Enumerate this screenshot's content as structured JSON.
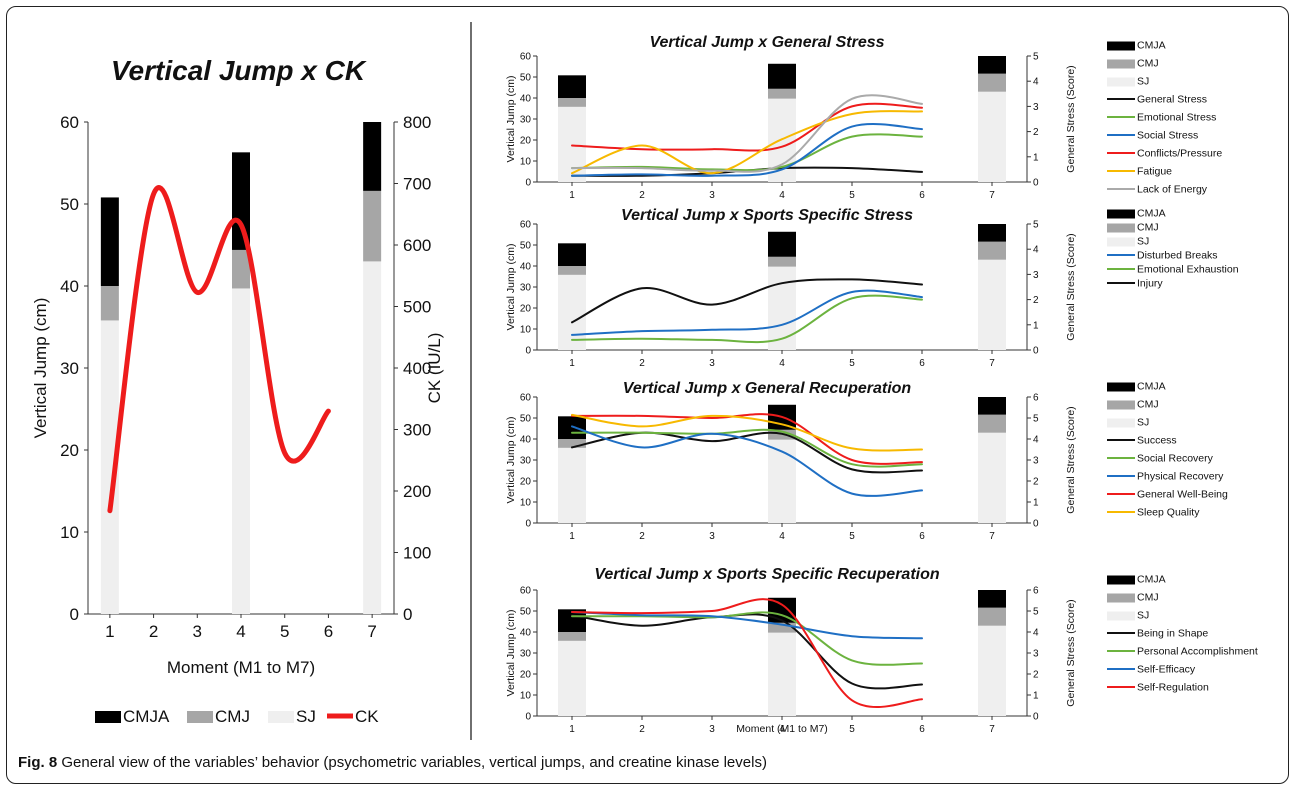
{
  "caption": {
    "label": "Fig. 8",
    "text": " General view of the variables’ behavior (psychometric variables, vertical jumps, and creatine kinase levels)"
  },
  "colors": {
    "cmja": "#000000",
    "cmj": "#a6a6a6",
    "sj": "#efefef",
    "red": "#ee1c1c",
    "green": "#6cb33f",
    "blue": "#1f6fc4",
    "yellow": "#f7b900",
    "gray": "#aaaaaa",
    "black": "#111111"
  },
  "chart_data": [
    {
      "id": "ck",
      "type": "bar+line",
      "title": "Vertical Jump x CK",
      "xlabel": "Moment (M1 to M7)",
      "ylabel": "Vertical Jump (cm)",
      "y2label": "CK (IU/L)",
      "ylim": [
        0,
        60
      ],
      "yticks": [
        0,
        10,
        20,
        30,
        40,
        50,
        60
      ],
      "y2lim": [
        0,
        800
      ],
      "y2ticks": [
        0,
        100,
        200,
        300,
        400,
        500,
        600,
        700,
        800
      ],
      "x": [
        1,
        2,
        3,
        4,
        5,
        6,
        7
      ],
      "bars": [
        {
          "x": 1,
          "sj": 35.8,
          "cmj": 40,
          "cmja": 50.8
        },
        {
          "x": 4,
          "sj": 39.7,
          "cmj": 44.4,
          "cmja": 56.3
        },
        {
          "x": 7,
          "sj": 43,
          "cmj": 51.6,
          "cmja": 60
        }
      ],
      "bar_legend": [
        "CMJA",
        "CMJ",
        "SJ"
      ],
      "series": [
        {
          "name": "CK",
          "color": "red",
          "axis": "y2",
          "x": [
            1,
            2,
            3,
            4,
            5,
            6
          ],
          "values": [
            168,
            683,
            523,
            633,
            262,
            330
          ]
        }
      ],
      "legend_position": "bottom"
    },
    {
      "id": "gs",
      "type": "bar+line",
      "title": "Vertical Jump x General Stress",
      "xlabel": "",
      "ylabel": "Vertical Jump (cm)",
      "y2label": "General Stress (Score)",
      "ylim": [
        0,
        60
      ],
      "yticks": [
        0,
        10,
        20,
        30,
        40,
        50,
        60
      ],
      "y2lim": [
        0,
        5
      ],
      "y2ticks": [
        0,
        1,
        2,
        3,
        4,
        5
      ],
      "x": [
        1,
        2,
        3,
        4,
        5,
        6,
        7
      ],
      "bars": [
        {
          "x": 1,
          "sj": 35.8,
          "cmj": 40,
          "cmja": 50.8
        },
        {
          "x": 4,
          "sj": 39.7,
          "cmj": 44.4,
          "cmja": 56.3
        },
        {
          "x": 7,
          "sj": 43,
          "cmj": 51.6,
          "cmja": 60
        }
      ],
      "bar_legend": [
        "CMJA",
        "CMJ",
        "SJ"
      ],
      "series": [
        {
          "name": "General Stress",
          "color": "black",
          "axis": "y2",
          "x": [
            1,
            2,
            3,
            4,
            5,
            6
          ],
          "values": [
            0.25,
            0.25,
            0.35,
            0.55,
            0.55,
            0.4
          ]
        },
        {
          "name": "Emotional Stress",
          "color": "green",
          "axis": "y2",
          "x": [
            1,
            2,
            3,
            4,
            5,
            6
          ],
          "values": [
            0.55,
            0.6,
            0.5,
            0.6,
            1.8,
            1.8
          ]
        },
        {
          "name": "Social Stress",
          "color": "blue",
          "axis": "y2",
          "x": [
            1,
            2,
            3,
            4,
            5,
            6
          ],
          "values": [
            0.25,
            0.3,
            0.25,
            0.5,
            2.2,
            2.1
          ]
        },
        {
          "name": "Conflicts/Pressure",
          "color": "red",
          "axis": "y2",
          "x": [
            1,
            2,
            3,
            4,
            5,
            6
          ],
          "values": [
            1.45,
            1.3,
            1.3,
            1.4,
            3.0,
            2.95
          ]
        },
        {
          "name": "Fatigue",
          "color": "yellow",
          "axis": "y2",
          "x": [
            1,
            2,
            3,
            4,
            5,
            6
          ],
          "values": [
            0.35,
            1.45,
            0.35,
            1.7,
            2.7,
            2.8
          ]
        },
        {
          "name": "Lack of Energy",
          "color": "gray",
          "axis": "y2",
          "x": [
            1,
            2,
            3,
            4,
            5,
            6
          ],
          "values": [
            0.55,
            0.55,
            0.45,
            0.7,
            3.3,
            3.1
          ]
        }
      ],
      "legend_position": "right"
    },
    {
      "id": "sss",
      "type": "bar+line",
      "title": "Vertical Jump x Sports Specific Stress",
      "xlabel": "",
      "ylabel": "Vertical Jump (cm)",
      "y2label": "General Stress (Score)",
      "ylim": [
        0,
        60
      ],
      "yticks": [
        0,
        10,
        20,
        30,
        40,
        50,
        60
      ],
      "y2lim": [
        0,
        5
      ],
      "y2ticks": [
        0,
        1,
        2,
        3,
        4,
        5
      ],
      "x": [
        1,
        2,
        3,
        4,
        5,
        6,
        7
      ],
      "bars": [
        {
          "x": 1,
          "sj": 35.8,
          "cmj": 40,
          "cmja": 50.8
        },
        {
          "x": 4,
          "sj": 39.7,
          "cmj": 44.4,
          "cmja": 56.3
        },
        {
          "x": 7,
          "sj": 43,
          "cmj": 51.6,
          "cmja": 60
        }
      ],
      "bar_legend": [
        "CMJA",
        "CMJ",
        "SJ"
      ],
      "series": [
        {
          "name": "Disturbed Breaks",
          "color": "blue",
          "axis": "y2",
          "x": [
            1,
            2,
            3,
            4,
            5,
            6
          ],
          "values": [
            0.6,
            0.75,
            0.8,
            1.0,
            2.3,
            2.1
          ]
        },
        {
          "name": "Emotional Exhaustion",
          "color": "green",
          "axis": "y2",
          "x": [
            1,
            2,
            3,
            4,
            5,
            6
          ],
          "values": [
            0.4,
            0.45,
            0.4,
            0.45,
            2.05,
            2.0
          ]
        },
        {
          "name": "Injury",
          "color": "black",
          "axis": "y2",
          "x": [
            1,
            2,
            3,
            4,
            5,
            6
          ],
          "values": [
            1.1,
            2.45,
            1.8,
            2.65,
            2.8,
            2.6
          ]
        }
      ],
      "legend_position": "right"
    },
    {
      "id": "gr",
      "type": "bar+line",
      "title": "Vertical Jump x General Recuperation",
      "xlabel": "",
      "ylabel": "Vertical Jump (cm)",
      "y2label": "General Stress (Score)",
      "ylim": [
        0,
        60
      ],
      "yticks": [
        0,
        10,
        20,
        30,
        40,
        50,
        60
      ],
      "y2lim": [
        0,
        6
      ],
      "y2ticks": [
        0,
        1,
        2,
        3,
        4,
        5,
        6
      ],
      "x": [
        1,
        2,
        3,
        4,
        5,
        6,
        7
      ],
      "bars": [
        {
          "x": 1,
          "sj": 35.8,
          "cmj": 40,
          "cmja": 50.8
        },
        {
          "x": 4,
          "sj": 39.7,
          "cmj": 44.4,
          "cmja": 56.3
        },
        {
          "x": 7,
          "sj": 43,
          "cmj": 51.6,
          "cmja": 60
        }
      ],
      "bar_legend": [
        "CMJA",
        "CMJ",
        "SJ"
      ],
      "series": [
        {
          "name": "Success",
          "color": "black",
          "axis": "y2",
          "x": [
            1,
            2,
            3,
            4,
            5,
            6
          ],
          "values": [
            3.6,
            4.3,
            3.9,
            4.25,
            2.55,
            2.5
          ]
        },
        {
          "name": "Social Recovery",
          "color": "green",
          "axis": "y2",
          "x": [
            1,
            2,
            3,
            4,
            5,
            6
          ],
          "values": [
            4.3,
            4.3,
            4.25,
            4.35,
            2.8,
            2.8
          ]
        },
        {
          "name": "Physical Recovery",
          "color": "blue",
          "axis": "y2",
          "x": [
            1,
            2,
            3,
            4,
            5,
            6
          ],
          "values": [
            4.6,
            3.6,
            4.25,
            3.4,
            1.4,
            1.55
          ]
        },
        {
          "name": "General Well-Being",
          "color": "red",
          "axis": "y2",
          "x": [
            1,
            2,
            3,
            4,
            5,
            6
          ],
          "values": [
            5.1,
            5.1,
            5.0,
            5.05,
            3.0,
            2.9
          ]
        },
        {
          "name": "Sleep Quality",
          "color": "yellow",
          "axis": "y2",
          "x": [
            1,
            2,
            3,
            4,
            5,
            6
          ],
          "values": [
            5.15,
            4.6,
            5.1,
            4.7,
            3.55,
            3.5
          ]
        }
      ],
      "legend_position": "right"
    },
    {
      "id": "ssr",
      "type": "bar+line",
      "title": "Vertical Jump x Sports Specific Recuperation",
      "xlabel": "Moment (M1 to M7)",
      "ylabel": "Vertical Jump (cm)",
      "y2label": "General Stress (Score)",
      "ylim": [
        0,
        60
      ],
      "yticks": [
        0,
        10,
        20,
        30,
        40,
        50,
        60
      ],
      "y2lim": [
        0,
        6
      ],
      "y2ticks": [
        0,
        1,
        2,
        3,
        4,
        5,
        6
      ],
      "x": [
        1,
        2,
        3,
        4,
        5,
        6,
        7
      ],
      "bars": [
        {
          "x": 1,
          "sj": 35.8,
          "cmj": 40,
          "cmja": 50.8
        },
        {
          "x": 4,
          "sj": 39.7,
          "cmj": 44.4,
          "cmja": 56.3
        },
        {
          "x": 7,
          "sj": 43,
          "cmj": 51.6,
          "cmja": 60
        }
      ],
      "bar_legend": [
        "CMJA",
        "CMJ",
        "SJ"
      ],
      "series": [
        {
          "name": "Being in Shape",
          "color": "black",
          "axis": "y2",
          "x": [
            1,
            2,
            3,
            4,
            5,
            6
          ],
          "values": [
            4.8,
            4.3,
            4.7,
            4.55,
            1.55,
            1.5
          ]
        },
        {
          "name": "Personal Accomplishment",
          "color": "green",
          "axis": "y2",
          "x": [
            1,
            2,
            3,
            4,
            5,
            6
          ],
          "values": [
            4.75,
            4.75,
            4.7,
            4.8,
            2.65,
            2.5
          ]
        },
        {
          "name": "Self-Efficacy",
          "color": "blue",
          "axis": "y2",
          "x": [
            1,
            2,
            3,
            4,
            5,
            6
          ],
          "values": [
            4.95,
            4.8,
            4.75,
            4.35,
            3.8,
            3.7
          ]
        },
        {
          "name": "Self-Regulation",
          "color": "red",
          "axis": "y2",
          "x": [
            1,
            2,
            3,
            4,
            5,
            6
          ],
          "values": [
            4.95,
            4.9,
            5.0,
            5.3,
            0.75,
            0.8
          ]
        }
      ],
      "legend_position": "right"
    }
  ]
}
